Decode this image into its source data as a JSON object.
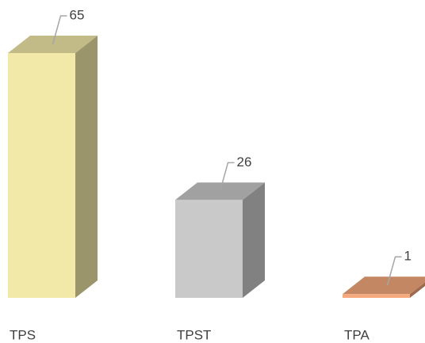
{
  "chart_data": {
    "type": "bar3d",
    "categories": [
      "TPS",
      "TPST",
      "TPA"
    ],
    "values": [
      65,
      26,
      1
    ],
    "colors": [
      "#f2e9a9",
      "#c9c9c9",
      "#f5a97d"
    ]
  }
}
